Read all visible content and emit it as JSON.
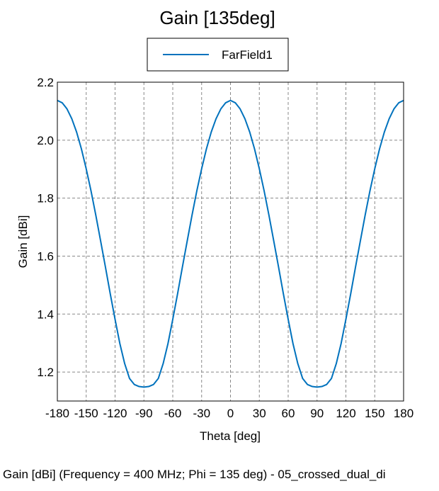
{
  "chart_data": {
    "type": "line",
    "title": "Gain [135deg]",
    "xlabel": "Theta [deg]",
    "ylabel": "Gain [dBi]",
    "caption": "Gain [dBi] (Frequency = 400 MHz; Phi = 135 deg) - 05_crossed_dual_di",
    "xlim": [
      -180,
      180
    ],
    "ylim": [
      1.1,
      2.2
    ],
    "xticks": [
      -180,
      -150,
      -120,
      -90,
      -60,
      -30,
      0,
      30,
      60,
      90,
      120,
      150,
      180
    ],
    "yticks": [
      1.2,
      1.4,
      1.6,
      1.8,
      2.0,
      2.2
    ],
    "ytick_labels": [
      "1.2",
      "1.4",
      "1.6",
      "1.8",
      "2.0",
      "2.2"
    ],
    "grid": true,
    "legend": {
      "placement": "top-center",
      "entries": [
        "FarField1"
      ]
    },
    "series": [
      {
        "name": "FarField1",
        "color": "#0072bd",
        "x": [
          -180,
          -175,
          -170,
          -165,
          -160,
          -155,
          -150,
          -145,
          -140,
          -135,
          -130,
          -125,
          -120,
          -115,
          -110,
          -105,
          -100,
          -95,
          -90,
          -85,
          -80,
          -75,
          -70,
          -65,
          -60,
          -55,
          -50,
          -45,
          -40,
          -35,
          -30,
          -25,
          -20,
          -15,
          -10,
          -5,
          0,
          5,
          10,
          15,
          20,
          25,
          30,
          35,
          40,
          45,
          50,
          55,
          60,
          65,
          70,
          75,
          80,
          85,
          90,
          95,
          100,
          105,
          110,
          115,
          120,
          125,
          130,
          135,
          140,
          145,
          150,
          155,
          160,
          165,
          170,
          175,
          180
        ],
        "y": [
          2.137,
          2.129,
          2.108,
          2.074,
          2.028,
          1.97,
          1.901,
          1.825,
          1.741,
          1.652,
          1.562,
          1.47,
          1.382,
          1.298,
          1.229,
          1.178,
          1.157,
          1.15,
          1.148,
          1.15,
          1.157,
          1.178,
          1.229,
          1.298,
          1.382,
          1.47,
          1.562,
          1.652,
          1.741,
          1.825,
          1.901,
          1.97,
          2.028,
          2.074,
          2.108,
          2.129,
          2.137,
          2.129,
          2.108,
          2.074,
          2.028,
          1.97,
          1.901,
          1.825,
          1.741,
          1.652,
          1.562,
          1.47,
          1.382,
          1.298,
          1.229,
          1.178,
          1.157,
          1.15,
          1.148,
          1.15,
          1.157,
          1.178,
          1.229,
          1.298,
          1.382,
          1.47,
          1.562,
          1.652,
          1.741,
          1.825,
          1.901,
          1.97,
          2.028,
          2.074,
          2.108,
          2.129,
          2.137
        ]
      }
    ]
  }
}
